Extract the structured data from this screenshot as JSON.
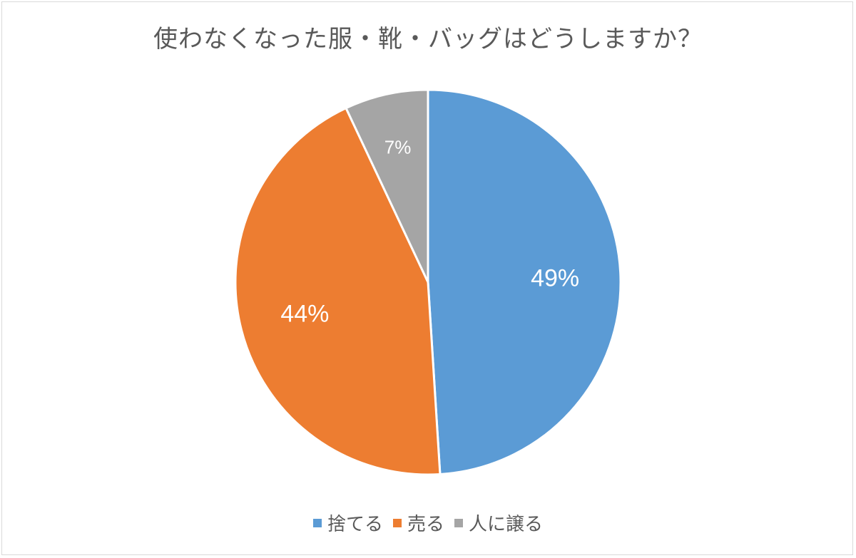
{
  "chart_data": {
    "type": "pie",
    "title": "使わなくなった服・靴・バッグはどうしますか？",
    "categories": [
      "捨てる",
      "売る",
      "人に譲る"
    ],
    "values": [
      49,
      44,
      7
    ],
    "labels": [
      "49%",
      "44%",
      "7%"
    ],
    "colors": [
      "#5b9bd5",
      "#ed7d31",
      "#a5a5a5"
    ],
    "legend_position": "bottom"
  }
}
